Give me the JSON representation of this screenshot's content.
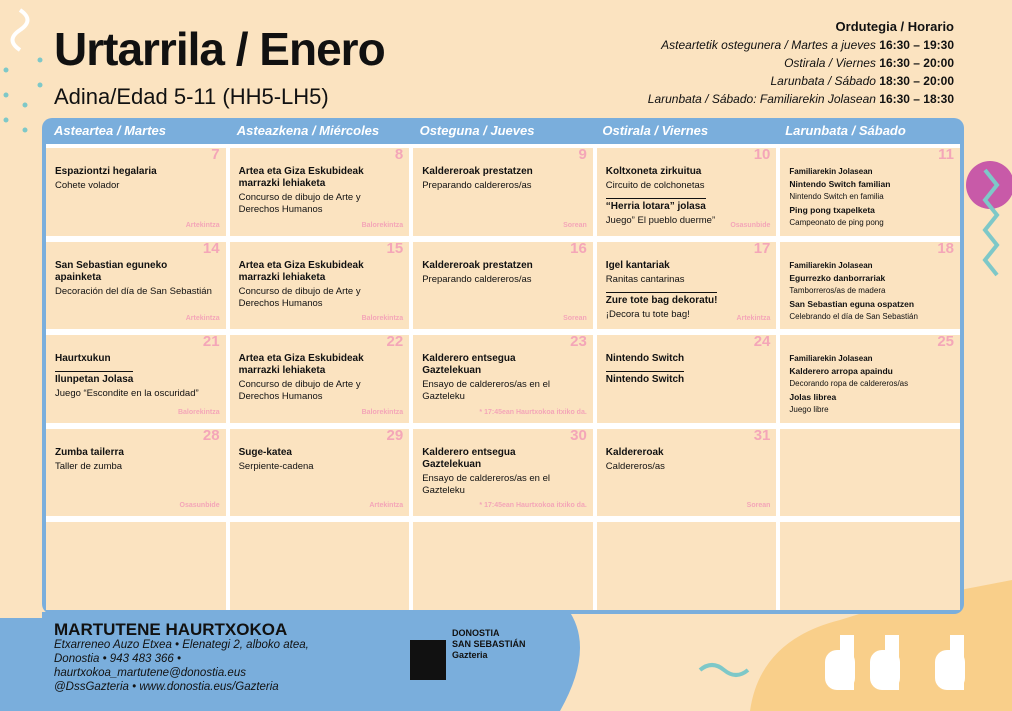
{
  "header": {
    "title": "Urtarrila / Enero",
    "subtitle": "Adina/Edad 5-11 (HH5-LH5)"
  },
  "schedule": {
    "title": "Ordutegia / Horario",
    "rows": [
      {
        "label": "Asteartetik ostegunera / Martes a jueves",
        "time": "16:30 – 19:30"
      },
      {
        "label": "Ostirala / Viernes",
        "time": "16:30 – 20:00"
      },
      {
        "label": "Larunbata / Sábado",
        "time": "18:30 – 20:00"
      },
      {
        "label": "Larunbata / Sábado: Familiarekin Jolasean",
        "time": "16:30 – 18:30"
      }
    ]
  },
  "days": [
    "Asteartea / Martes",
    "Asteazkena / Miércoles",
    "Osteguna / Jueves",
    "Ostirala / Viernes",
    "Larunbata / Sábado"
  ],
  "weeks": [
    [
      {
        "day": 7,
        "entries": [
          {
            "title": "Espaziontzi hegalaria",
            "sub": "Cohete volador"
          }
        ],
        "tag": "Artekintza"
      },
      {
        "day": 8,
        "entries": [
          {
            "title": "Artea eta Giza Eskubideak marrazki lehiaketa",
            "sub": "Concurso de dibujo de Arte y Derechos Humanos"
          }
        ],
        "tag": "Balorekintza"
      },
      {
        "day": 9,
        "entries": [
          {
            "title": "Kaldereroak prestatzen",
            "sub": "Preparando caldereros/as"
          }
        ],
        "tag": "Sorean"
      },
      {
        "day": 10,
        "entries": [
          {
            "title": "Koltxoneta zirkuitua",
            "sub": "Circuito de colchonetas"
          },
          {
            "title": "“Herria lotara” jolasa",
            "sub": "Juego” El pueblo duerme”"
          }
        ],
        "tag": "Osasunbide"
      },
      {
        "day": 11,
        "heading": "Familiarekin Jolasean",
        "entries": [
          {
            "title": "Nintendo Switch familian",
            "sub": "Nintendo Switch en familia"
          },
          {
            "title": "Ping pong txapelketa",
            "sub": "Campeonato de ping pong"
          }
        ]
      }
    ],
    [
      {
        "day": 14,
        "entries": [
          {
            "title": "San Sebastian eguneko apainketa",
            "sub": "Decoración del día de San Sebastián"
          }
        ],
        "tag": "Artekintza"
      },
      {
        "day": 15,
        "entries": [
          {
            "title": "Artea eta Giza Eskubideak marrazki lehiaketa",
            "sub": "Concurso de dibujo de Arte y Derechos Humanos"
          }
        ],
        "tag": "Balorekintza"
      },
      {
        "day": 16,
        "entries": [
          {
            "title": "Kaldereroak prestatzen",
            "sub": "Preparando caldereros/as"
          }
        ],
        "tag": "Sorean"
      },
      {
        "day": 17,
        "entries": [
          {
            "title": "Igel kantariak",
            "sub": "Ranitas cantarinas"
          },
          {
            "title": "Zure tote bag dekoratu!",
            "sub": "¡Decora tu tote bag!"
          }
        ],
        "tag": "Artekintza"
      },
      {
        "day": 18,
        "heading": "Familiarekin Jolasean",
        "entries": [
          {
            "title": "Egurrezko danborrariak",
            "sub": "Tamborreros/as de madera"
          },
          {
            "title": "San Sebastian eguna ospatzen",
            "sub": "Celebrando el día de San Sebastián"
          }
        ]
      }
    ],
    [
      {
        "day": 21,
        "entries": [
          {
            "title": "Haurtxukun"
          },
          {
            "title": "Ilunpetan Jolasa",
            "sub": "Juego “Escondite en la oscuridad”"
          }
        ],
        "tag": "Balorekintza"
      },
      {
        "day": 22,
        "entries": [
          {
            "title": "Artea eta Giza Eskubideak marrazki lehiaketa",
            "sub": "Concurso de dibujo de Arte y Derechos Humanos"
          }
        ],
        "tag": "Balorekintza"
      },
      {
        "day": 23,
        "entries": [
          {
            "title": "Kalderero entsegua Gaztelekuan",
            "sub": "Ensayo de caldereros/as en el Gazteleku"
          }
        ],
        "note": "* 17:45ean Haurtxokoa itxiko da."
      },
      {
        "day": 24,
        "entries": [
          {
            "title": "Nintendo Switch"
          },
          {
            "title": "Nintendo Switch"
          }
        ]
      },
      {
        "day": 25,
        "heading": "Familiarekin Jolasean",
        "entries": [
          {
            "title": "Kalderero arropa apaindu",
            "sub": "Decorando ropa de caldereros/as"
          },
          {
            "title": "Jolas librea",
            "sub": "Juego libre"
          }
        ]
      }
    ],
    [
      {
        "day": 28,
        "entries": [
          {
            "title": "Zumba tailerra",
            "sub": "Taller de zumba"
          }
        ],
        "tag": "Osasunbide"
      },
      {
        "day": 29,
        "entries": [
          {
            "title": "Suge-katea",
            "sub": "Serpiente-cadena"
          }
        ],
        "tag": "Artekintza"
      },
      {
        "day": 30,
        "entries": [
          {
            "title": "Kalderero entsegua Gaztelekuan",
            "sub": "Ensayo de caldereros/as en el Gazteleku"
          }
        ],
        "note": "* 17:45ean Haurtxokoa itxiko da."
      },
      {
        "day": 31,
        "entries": [
          {
            "title": "Kaldereroak",
            "sub": "Caldereros/as"
          }
        ],
        "tag": "Sorean"
      },
      {}
    ],
    [
      {},
      {},
      {},
      {},
      {}
    ]
  ],
  "footer": {
    "name": "MARTUTENE HAURTXOKOA",
    "lines": [
      "Etxarreneo Auzo Etxea • Elenategi 2, alboko atea,",
      "Donostia • 943 483 366 •",
      "haurtxokoa_martutene@donostia.eus",
      "@DssGazteria • www.donostia.eus/Gazteria"
    ],
    "logo": [
      "DONOSTIA",
      "SAN SEBASTIÁN",
      "Gazteria"
    ]
  }
}
